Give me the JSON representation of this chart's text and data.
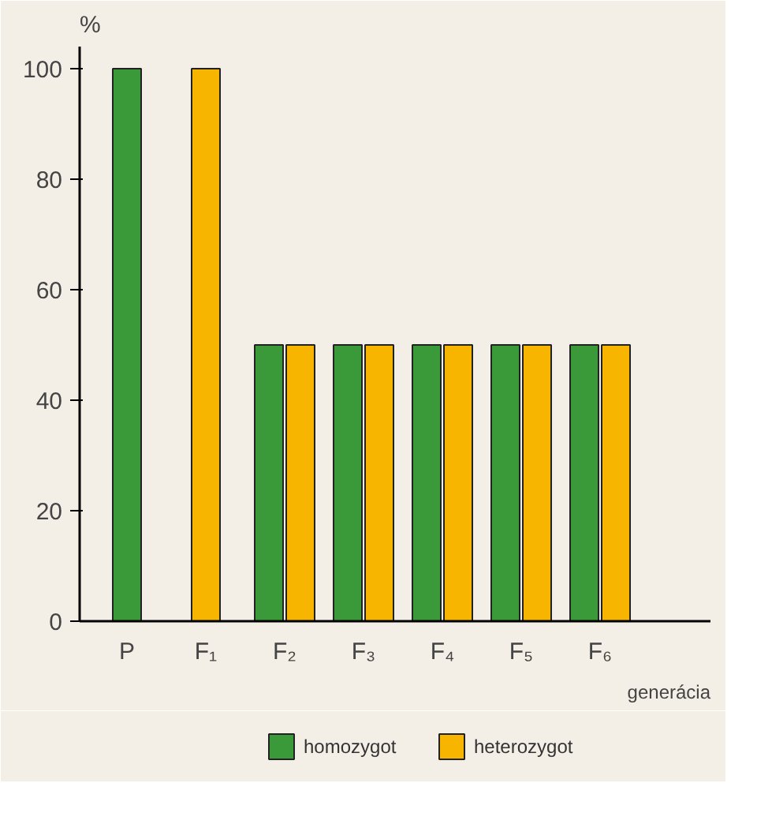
{
  "chart_data": {
    "type": "bar",
    "ylabel": "%",
    "xlabel": "generácia",
    "categories": [
      "P",
      "F₁",
      "F₂",
      "F₃",
      "F₄",
      "F₅",
      "F₆"
    ],
    "series": [
      {
        "name": "homozygot",
        "color": "#3a9a3a",
        "values": [
          100,
          null,
          50,
          50,
          50,
          50,
          50
        ]
      },
      {
        "name": "heterozygot",
        "color": "#f7b500",
        "values": [
          null,
          100,
          50,
          50,
          50,
          50,
          50
        ]
      }
    ],
    "ylim": [
      0,
      104
    ],
    "yticks": [
      0,
      20,
      40,
      60,
      80,
      100
    ],
    "grid": false,
    "legend": "bottom"
  }
}
